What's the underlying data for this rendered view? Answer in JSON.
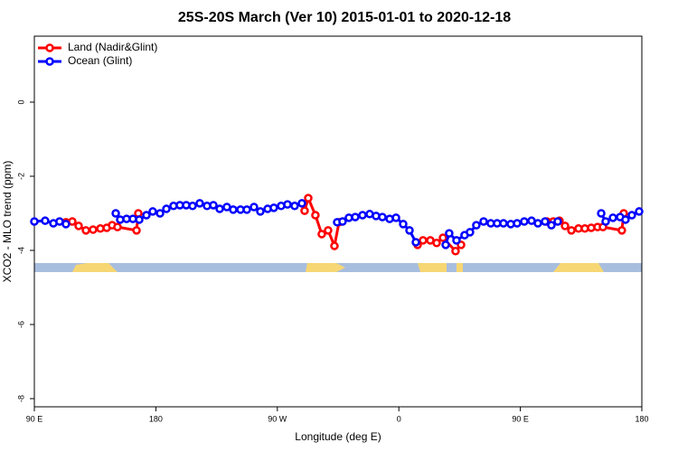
{
  "chart_data": {
    "type": "line",
    "title": "25S-20S March (Ver 10)   2015-01-01 to 2020-12-18",
    "x_label": "Longitude (deg E)",
    "y_label": "XCO2 - MLO trend (ppm)",
    "xlim": [
      90,
      540
    ],
    "ylim": [
      -8.22,
      1.78
    ],
    "xticks": [
      {
        "value": 90,
        "label": "90 E"
      },
      180,
      {
        "value": 270,
        "label": "90 W"
      },
      {
        "value": 360,
        "label": "0"
      },
      {
        "value": 450,
        "label": "90 E"
      },
      {
        "value": 540,
        "label": "180"
      }
    ],
    "yticks": [
      0,
      -2,
      -4,
      -6,
      -8
    ],
    "legend": "top-left",
    "series": [
      {
        "name": "Land (Nadir&Glint)",
        "color": "#ff0000",
        "x": [
          113.4,
          118.1,
          122.8,
          128.2,
          133.5,
          138.9,
          143.6,
          147.6,
          151.6,
          165.7,
          167.0,
          290.2,
          292.9,
          298.2,
          302.9,
          307.6,
          312.3,
          315.7,
          373.9,
          377.9,
          383.3,
          388.0,
          392.7,
          402.0,
          406.1,
          469.7,
          474.4,
          479.0,
          483.1,
          487.8,
          493.1,
          497.8,
          502.5,
          507.2,
          511.2,
          525.2,
          526.6
        ],
        "values": [
          -3.24,
          -3.22,
          -3.34,
          -3.46,
          -3.44,
          -3.41,
          -3.39,
          -3.32,
          -3.37,
          -3.46,
          -3.0,
          -2.93,
          -2.59,
          -3.05,
          -3.56,
          -3.46,
          -3.88,
          -3.24,
          -3.85,
          -3.73,
          -3.73,
          -3.8,
          -3.66,
          -4.02,
          -3.85,
          -3.22,
          -3.22,
          -3.2,
          -3.34,
          -3.46,
          -3.41,
          -3.41,
          -3.39,
          -3.37,
          -3.37,
          -3.46,
          -3.0
        ]
      },
      {
        "name": "Ocean (Glint)",
        "color": "#0000ff",
        "x": [
          90,
          98.0,
          104.1,
          108.7,
          113.4,
          150.3,
          153.6,
          158.3,
          163.0,
          167.7,
          173.0,
          177.7,
          183.1,
          187.8,
          193.1,
          197.8,
          202.5,
          207.2,
          212.5,
          217.9,
          222.6,
          227.3,
          232.6,
          237.3,
          242.7,
          247.4,
          252.7,
          257.4,
          262.8,
          267.4,
          272.8,
          277.5,
          282.8,
          288.2,
          314.3,
          318.3,
          323.0,
          327.7,
          333.1,
          338.4,
          343.1,
          347.8,
          353.2,
          357.9,
          363.2,
          367.9,
          372.6,
          394.7,
          397.3,
          402.7,
          408.7,
          412.7,
          417.4,
          422.8,
          428.1,
          432.8,
          437.5,
          442.9,
          447.6,
          452.9,
          458.3,
          463.0,
          468.3,
          473.0,
          477.7,
          509.9,
          513.2,
          518.6,
          523.9,
          527.9,
          532.6,
          538.0
        ],
        "values": [
          -3.22,
          -3.2,
          -3.27,
          -3.22,
          -3.29,
          -3.0,
          -3.17,
          -3.15,
          -3.15,
          -3.17,
          -3.05,
          -2.95,
          -3.0,
          -2.88,
          -2.8,
          -2.78,
          -2.78,
          -2.8,
          -2.73,
          -2.8,
          -2.78,
          -2.88,
          -2.83,
          -2.9,
          -2.9,
          -2.9,
          -2.83,
          -2.95,
          -2.88,
          -2.85,
          -2.8,
          -2.76,
          -2.8,
          -2.73,
          -3.24,
          -3.22,
          -3.12,
          -3.1,
          -3.05,
          -3.02,
          -3.07,
          -3.1,
          -3.15,
          -3.12,
          -3.29,
          -3.46,
          -3.78,
          -3.85,
          -3.54,
          -3.73,
          -3.59,
          -3.51,
          -3.32,
          -3.22,
          -3.27,
          -3.27,
          -3.27,
          -3.29,
          -3.27,
          -3.22,
          -3.2,
          -3.27,
          -3.22,
          -3.32,
          -3.22,
          -3.0,
          -3.22,
          -3.12,
          -3.1,
          -3.17,
          -3.05,
          -2.95
        ]
      }
    ]
  }
}
